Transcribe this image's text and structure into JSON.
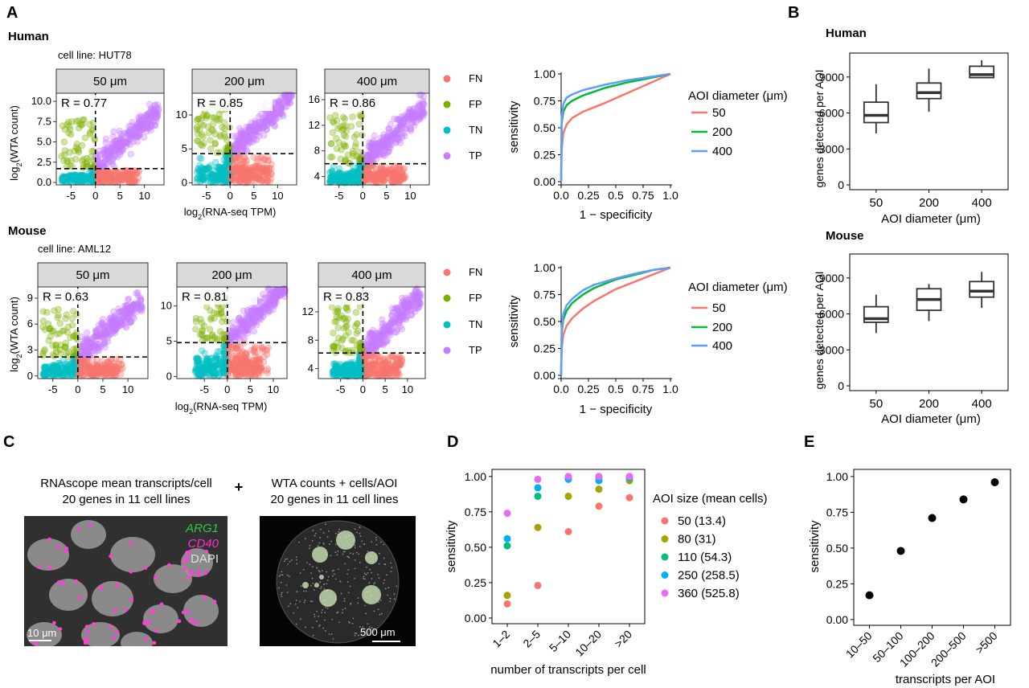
{
  "panel_letters": {
    "A": "A",
    "B": "B",
    "C": "C",
    "D": "D",
    "E": "E"
  },
  "panel_a": {
    "human_label": "Human",
    "mouse_label": "Mouse",
    "human_cell_line": "cell line: HUT78",
    "mouse_cell_line": "cell line: AML12",
    "ylabel_prefix": "log",
    "ylabel_sub": "2",
    "ylabel_suffix": "(WTA count)",
    "xlabel_prefix": "log",
    "xlabel_sub": "2",
    "xlabel_suffix": "(RNA-seq TPM)",
    "mu": "μm",
    "legend": [
      {
        "label": "FN",
        "color": "#F8766D"
      },
      {
        "label": "FP",
        "color": "#7CAE00"
      },
      {
        "label": "TN",
        "color": "#00BFC4"
      },
      {
        "label": "TP",
        "color": "#C77CFF"
      }
    ]
  },
  "roc_legend": {
    "title": "AOI diameter (μm)",
    "items": [
      {
        "label": "50",
        "color": "#F8766D"
      },
      {
        "label": "200",
        "color": "#00BA38"
      },
      {
        "label": "400",
        "color": "#619CFF"
      }
    ],
    "xlabel": "1 − specificity",
    "ylabel": "sensitivity"
  },
  "panel_b": {
    "human_title": "Human",
    "mouse_title": "Mouse",
    "ylabel": "genes detected per AOI",
    "xlabel": "AOI diameter (μm)"
  },
  "panel_c": {
    "left_line1": "RNAscope mean transcripts/cell",
    "left_line2": "20 genes in 11 cell lines",
    "plus": "+",
    "right_line1": "WTA counts + cells/AOI",
    "right_line2": "20 genes in 11 cell lines",
    "arg1": "ARG1",
    "cd40": "CD40",
    "dapi": "DAPI",
    "scale_left": "10 μm",
    "scale_right": "500 μm"
  },
  "chart_data": [
    {
      "id": "scatter-human-50",
      "type": "scatter",
      "facet": "50 μm",
      "r_label": "R =  0.77",
      "xlim": [
        -8,
        14
      ],
      "ylim": [
        -0.3,
        11
      ],
      "yticks": [
        0.0,
        2.5,
        5.0,
        7.5,
        10.0
      ],
      "ytick_labels": [
        "0.0",
        "2.5",
        "5.0",
        "7.5",
        "10.0"
      ],
      "xticks": [
        -5,
        0,
        5,
        10
      ],
      "xtick_labels": [
        "-5",
        "0",
        "5",
        "10"
      ],
      "x_threshold": 0,
      "y_threshold": 1.7
    },
    {
      "id": "scatter-human-200",
      "type": "scatter",
      "facet": "200 μm",
      "r_label": "R =  0.85",
      "xlim": [
        -8,
        14
      ],
      "ylim": [
        -0.3,
        13.2
      ],
      "yticks": [
        0,
        5,
        10
      ],
      "ytick_labels": [
        "0",
        "5",
        "10"
      ],
      "xticks": [
        -5,
        0,
        5,
        10
      ],
      "xtick_labels": [
        "-5",
        "0",
        "5",
        "10"
      ],
      "x_threshold": 0,
      "y_threshold": 4.3
    },
    {
      "id": "scatter-human-400",
      "type": "scatter",
      "facet": "400 μm",
      "r_label": "R =  0.86",
      "xlim": [
        -8,
        14
      ],
      "ylim": [
        2.7,
        17
      ],
      "yticks": [
        4,
        8,
        12,
        16
      ],
      "ytick_labels": [
        "4",
        "8",
        "12",
        "16"
      ],
      "xticks": [
        -5,
        0,
        5,
        10
      ],
      "xtick_labels": [
        "-5",
        "0",
        "5",
        "10"
      ],
      "x_threshold": 0,
      "y_threshold": 6
    },
    {
      "id": "scatter-mouse-50",
      "type": "scatter",
      "facet": "50 μm",
      "r_label": "R =  0.63",
      "xlim": [
        -8,
        14
      ],
      "ylim": [
        -0.3,
        10.3
      ],
      "yticks": [
        0,
        3,
        6,
        9
      ],
      "ytick_labels": [
        "0",
        "3",
        "6",
        "9"
      ],
      "xticks": [
        -5,
        0,
        5,
        10
      ],
      "xtick_labels": [
        "-5",
        "0",
        "5",
        "10"
      ],
      "x_threshold": 0,
      "y_threshold": 2.2
    },
    {
      "id": "scatter-mouse-200",
      "type": "scatter",
      "facet": "200 μm",
      "r_label": "R =  0.81",
      "xlim": [
        -11,
        13
      ],
      "ylim": [
        -0.3,
        12.7
      ],
      "yticks": [
        0,
        5,
        10
      ],
      "ytick_labels": [
        "0",
        "5",
        "10"
      ],
      "xticks": [
        -5,
        0,
        5,
        10
      ],
      "xtick_labels": [
        "-5",
        "0",
        "5",
        "10"
      ],
      "x_threshold": 0,
      "y_threshold": 4.8
    },
    {
      "id": "scatter-mouse-400",
      "type": "scatter",
      "facet": "400 μm",
      "r_label": "R =  0.83",
      "xlim": [
        -10,
        14
      ],
      "ylim": [
        2.6,
        15.5
      ],
      "yticks": [
        4,
        8,
        12
      ],
      "ytick_labels": [
        "4",
        "8",
        "12"
      ],
      "xticks": [
        -5,
        0,
        5,
        10
      ],
      "xtick_labels": [
        "-5",
        "0",
        "5",
        "10"
      ],
      "x_threshold": 0,
      "y_threshold": 6.2
    },
    {
      "id": "roc-human",
      "type": "line",
      "xlim": [
        0,
        1
      ],
      "ylim": [
        0,
        1
      ],
      "ticks": [
        0,
        0.25,
        0.5,
        0.75,
        1
      ],
      "xtick_labels": [
        "0.0",
        "0.25",
        "0.5",
        "0.75",
        "1.0"
      ],
      "ytick_labels": [
        "0.00",
        "0.25",
        "0.50",
        "0.75",
        "1.00"
      ],
      "series": [
        {
          "name": "50",
          "color": "#F8766D",
          "x": [
            0,
            0.005,
            0.02,
            0.05,
            0.1,
            0.2,
            0.4,
            0.6,
            0.8,
            1.0
          ],
          "y": [
            0,
            0.3,
            0.45,
            0.53,
            0.59,
            0.65,
            0.73,
            0.82,
            0.91,
            1.0
          ]
        },
        {
          "name": "200",
          "color": "#00BA38",
          "x": [
            0,
            0.005,
            0.02,
            0.05,
            0.1,
            0.2,
            0.4,
            0.6,
            0.8,
            1.0
          ],
          "y": [
            0,
            0.55,
            0.65,
            0.71,
            0.75,
            0.8,
            0.87,
            0.92,
            0.96,
            1.0
          ]
        },
        {
          "name": "400",
          "color": "#619CFF",
          "x": [
            0,
            0.005,
            0.02,
            0.05,
            0.1,
            0.2,
            0.4,
            0.6,
            0.8,
            1.0
          ],
          "y": [
            0,
            0.6,
            0.72,
            0.78,
            0.81,
            0.85,
            0.9,
            0.94,
            0.97,
            1.0
          ]
        }
      ]
    },
    {
      "id": "roc-mouse",
      "type": "line",
      "xlim": [
        0,
        1
      ],
      "ylim": [
        0,
        1
      ],
      "ticks": [
        0,
        0.25,
        0.5,
        0.75,
        1
      ],
      "xtick_labels": [
        "0.0",
        "0.25",
        "0.5",
        "0.75",
        "1.0"
      ],
      "ytick_labels": [
        "0.00",
        "0.25",
        "0.50",
        "0.75",
        "1.00"
      ],
      "series": [
        {
          "name": "50",
          "color": "#F8766D",
          "x": [
            0,
            0.005,
            0.02,
            0.05,
            0.1,
            0.2,
            0.3,
            0.5,
            0.7,
            0.85,
            1.0
          ],
          "y": [
            0,
            0.25,
            0.38,
            0.46,
            0.53,
            0.62,
            0.69,
            0.8,
            0.88,
            0.94,
            1.0
          ]
        },
        {
          "name": "200",
          "color": "#00BA38",
          "x": [
            0,
            0.005,
            0.02,
            0.05,
            0.1,
            0.2,
            0.3,
            0.5,
            0.7,
            0.85,
            1.0
          ],
          "y": [
            0,
            0.4,
            0.52,
            0.6,
            0.67,
            0.75,
            0.81,
            0.89,
            0.94,
            0.98,
            1.0
          ]
        },
        {
          "name": "400",
          "color": "#619CFF",
          "x": [
            0,
            0.005,
            0.02,
            0.05,
            0.1,
            0.2,
            0.3,
            0.5,
            0.7,
            0.85,
            1.0
          ],
          "y": [
            0,
            0.44,
            0.57,
            0.65,
            0.71,
            0.79,
            0.84,
            0.9,
            0.95,
            0.98,
            1.0
          ]
        }
      ]
    },
    {
      "id": "box-human",
      "type": "box",
      "categories": [
        "50",
        "200",
        "400"
      ],
      "ylim": [
        -400,
        11000
      ],
      "yticks": [
        0,
        3000,
        6000,
        9000
      ],
      "ytick_labels": [
        "0",
        "3000",
        "6000",
        "9000"
      ],
      "boxes": [
        {
          "min": 4300,
          "q1": 5200,
          "median": 5800,
          "q3": 6900,
          "max": 8400
        },
        {
          "min": 6100,
          "q1": 7200,
          "median": 7700,
          "q3": 8500,
          "max": 9700
        },
        {
          "min": 8900,
          "q1": 8950,
          "median": 9200,
          "q3": 9900,
          "max": 10400
        }
      ]
    },
    {
      "id": "box-mouse",
      "type": "box",
      "categories": [
        "50",
        "200",
        "400"
      ],
      "ylim": [
        -400,
        11000
      ],
      "yticks": [
        0,
        3000,
        6000,
        9000
      ],
      "ytick_labels": [
        "0",
        "3000",
        "6000",
        "9000"
      ],
      "boxes": [
        {
          "min": 4400,
          "q1": 5300,
          "median": 5600,
          "q3": 6600,
          "max": 7600
        },
        {
          "min": 5400,
          "q1": 6300,
          "median": 7200,
          "q3": 8100,
          "max": 8500
        },
        {
          "min": 6500,
          "q1": 7400,
          "median": 7900,
          "q3": 8700,
          "max": 9500
        }
      ]
    },
    {
      "id": "scatter-d",
      "type": "scatter",
      "categories": [
        "1–2",
        "2–5",
        "5–10",
        "10–20",
        ">20"
      ],
      "xlabel": "number of transcripts per cell",
      "ylabel": "sensitivity",
      "ylim": [
        -0.04,
        1.05
      ],
      "yticks": [
        0,
        0.25,
        0.5,
        0.75,
        1.0
      ],
      "ytick_labels": [
        "0.00",
        "0.25",
        "0.50",
        "0.75",
        "1.00"
      ],
      "legend_title": "AOI size (mean cells)",
      "series": [
        {
          "name": "50 (13.4)",
          "color": "#F8766D",
          "values": [
            0.1,
            0.23,
            0.61,
            0.79,
            0.85
          ]
        },
        {
          "name": "80 (31)",
          "color": "#A3A500",
          "values": [
            0.16,
            0.64,
            0.86,
            0.91,
            0.97
          ]
        },
        {
          "name": "110 (54.3)",
          "color": "#00BF7D",
          "values": [
            0.51,
            0.86,
            0.99,
            0.99,
            0.99
          ]
        },
        {
          "name": "250 (258.5)",
          "color": "#00B0F6",
          "values": [
            0.56,
            0.92,
            0.98,
            0.97,
            0.99
          ]
        },
        {
          "name": "360 (525.8)",
          "color": "#E76BF3",
          "values": [
            0.74,
            0.98,
            1.0,
            1.0,
            1.0
          ]
        }
      ]
    },
    {
      "id": "scatter-e",
      "type": "scatter",
      "categories": [
        "10–50",
        "50–100",
        "100–200",
        "200–500",
        ">500"
      ],
      "xlabel": "transcripts per AOI",
      "ylabel": "sensitivity",
      "ylim": [
        -0.04,
        1.05
      ],
      "yticks": [
        0,
        0.25,
        0.5,
        0.75,
        1.0
      ],
      "ytick_labels": [
        "0.00",
        "0.25",
        "0.50",
        "0.75",
        "1.00"
      ],
      "values": [
        0.17,
        0.48,
        0.71,
        0.84,
        0.96
      ]
    }
  ]
}
